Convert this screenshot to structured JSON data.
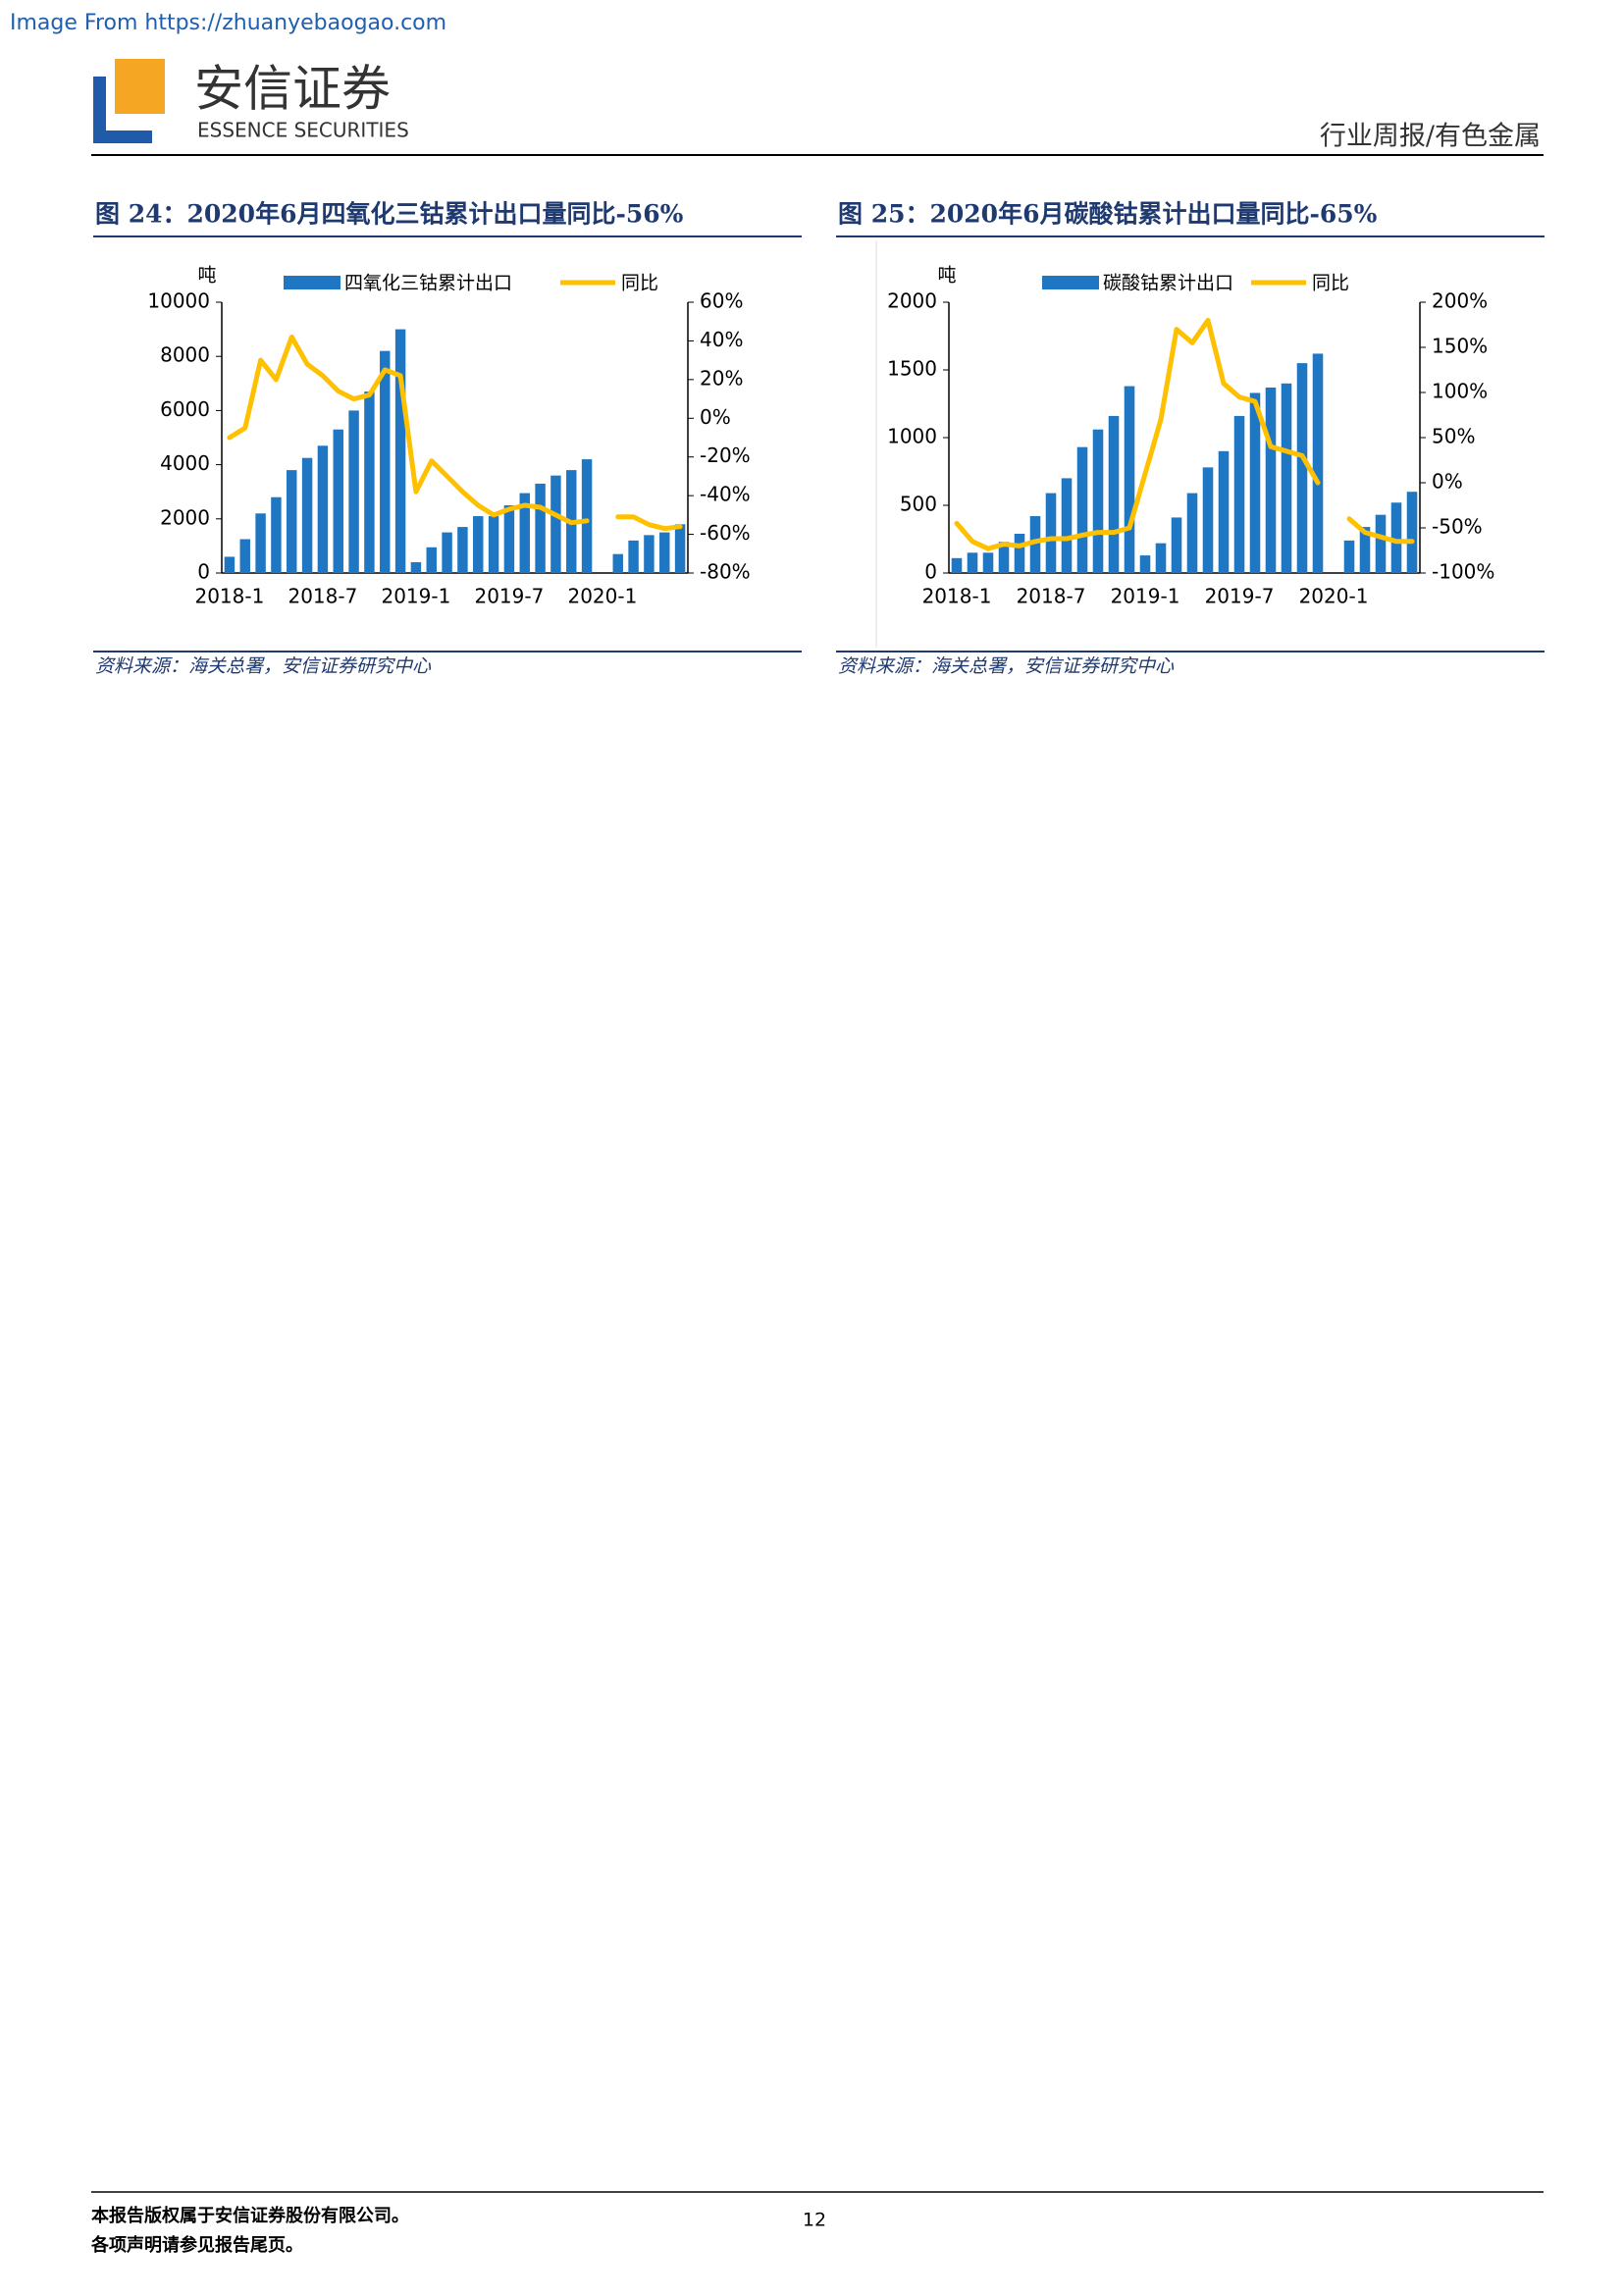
{
  "header": {
    "source_url": "Image From https://zhuanyebaogao.com",
    "logo_cn": "安信证券",
    "logo_en": "ESSENCE SECURITIES",
    "section": "行业周报/有色金属"
  },
  "figures": [
    {
      "title": "图 24：2020年6月四氧化三钴累计出口量同比-56%",
      "source": "资料来源：海关总署，安信证券研究中心"
    },
    {
      "title": "图 25：2020年6月碳酸钴累计出口量同比-65%",
      "source": "资料来源：海关总署，安信证券研究中心"
    }
  ],
  "chart_data": [
    {
      "type": "bar_line",
      "y_unit": "吨",
      "categories": [
        "2018-1",
        null,
        null,
        null,
        null,
        null,
        "2018-7",
        null,
        null,
        null,
        null,
        null,
        "2019-1",
        null,
        null,
        null,
        null,
        null,
        "2019-7",
        null,
        null,
        null,
        null,
        null,
        "2020-1",
        null,
        null,
        null,
        null,
        null
      ],
      "series": [
        {
          "name": "四氧化三钴累计出口",
          "color": "#1f77c4",
          "kind": "bar",
          "values": [
            600,
            1250,
            2200,
            2800,
            3800,
            4250,
            4700,
            5300,
            6000,
            6700,
            8200,
            9000,
            400,
            950,
            1500,
            1700,
            2100,
            2100,
            2500,
            2950,
            3300,
            3600,
            3800,
            4200,
            null,
            700,
            1200,
            1400,
            1500,
            1800
          ]
        },
        {
          "name": "同比",
          "color": "#ffc000",
          "kind": "line",
          "axis": "y2",
          "values": [
            -10,
            -5,
            30,
            20,
            42,
            28,
            22,
            14,
            10,
            12,
            25,
            22,
            -38,
            -22,
            -30,
            -38,
            -45,
            -50,
            -47,
            -45,
            -46,
            -50,
            -54,
            -53,
            null,
            -51,
            -51,
            -55,
            -57,
            -56
          ]
        }
      ],
      "ylim": [
        0,
        10000
      ],
      "yticks": [
        0,
        2000,
        4000,
        6000,
        8000,
        10000
      ],
      "y2lim": [
        -80,
        60
      ],
      "y2ticks": [
        {
          "value": -80,
          "label": "-80%"
        },
        {
          "value": -60,
          "label": "-60%"
        },
        {
          "value": -40,
          "label": "-40%"
        },
        {
          "value": -20,
          "label": "-20%"
        },
        {
          "value": 0,
          "label": "0%"
        },
        {
          "value": 20,
          "label": "20%"
        },
        {
          "value": 40,
          "label": "40%"
        },
        {
          "value": 60,
          "label": "60%"
        }
      ]
    },
    {
      "type": "bar_line",
      "y_unit": "吨",
      "categories": [
        "2018-1",
        null,
        null,
        null,
        null,
        null,
        "2018-7",
        null,
        null,
        null,
        null,
        null,
        "2019-1",
        null,
        null,
        null,
        null,
        null,
        "2019-7",
        null,
        null,
        null,
        null,
        null,
        "2020-1",
        null,
        null,
        null,
        null,
        null
      ],
      "series": [
        {
          "name": "碳酸钴累计出口",
          "color": "#1f77c4",
          "kind": "bar",
          "values": [
            110,
            150,
            150,
            230,
            290,
            420,
            590,
            700,
            930,
            1060,
            1160,
            1380,
            130,
            220,
            410,
            590,
            780,
            900,
            1160,
            1330,
            1370,
            1400,
            1550,
            1620,
            null,
            240,
            340,
            430,
            520,
            600
          ]
        },
        {
          "name": "同比",
          "color": "#ffc000",
          "kind": "line",
          "axis": "y2",
          "values": [
            -45,
            -65,
            -73,
            -68,
            -70,
            -65,
            -62,
            -62,
            -58,
            -55,
            -55,
            -50,
            10,
            70,
            170,
            155,
            180,
            110,
            95,
            90,
            40,
            35,
            30,
            0,
            null,
            -40,
            -55,
            -60,
            -65,
            -65
          ]
        }
      ],
      "ylim": [
        0,
        2000
      ],
      "yticks": [
        0,
        500,
        1000,
        1500,
        2000
      ],
      "y2lim": [
        -100,
        200
      ],
      "y2ticks": [
        {
          "value": -100,
          "label": "-100%"
        },
        {
          "value": -50,
          "label": "-50%"
        },
        {
          "value": 0,
          "label": "0%"
        },
        {
          "value": 50,
          "label": "50%"
        },
        {
          "value": 100,
          "label": "100%"
        },
        {
          "value": 150,
          "label": "150%"
        },
        {
          "value": 200,
          "label": "200%"
        }
      ]
    }
  ],
  "footer": {
    "copyright": "本报告版权属于安信证券股份有限公司。",
    "notice": "各项声明请参见报告尾页。",
    "page": "12"
  }
}
